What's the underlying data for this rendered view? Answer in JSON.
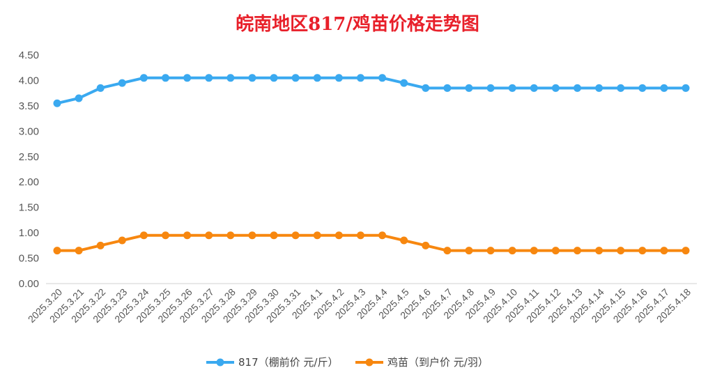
{
  "chart_data": {
    "type": "line",
    "title": "皖南地区817/鸡苗价格走势图",
    "xlabel": "",
    "ylabel": "",
    "ylim": [
      0,
      4.5
    ],
    "y_ticks": [
      "0.00",
      "0.50",
      "1.00",
      "1.50",
      "2.00",
      "2.50",
      "3.00",
      "3.50",
      "4.00",
      "4.50"
    ],
    "grid": false,
    "legend_position": "bottom",
    "categories": [
      "2025.3.20",
      "2025.3.21",
      "2025.3.22",
      "2025.3.23",
      "2025.3.24",
      "2025.3.25",
      "2025.3.26",
      "2025.3.27",
      "2025.3.28",
      "2025.3.29",
      "2025.3.30",
      "2025.3.31",
      "2025.4.1",
      "2025.4.2",
      "2025.4.3",
      "2025.4.4",
      "2025.4.5",
      "2025.4.6",
      "2025.4.7",
      "2025.4.8",
      "2025.4.9",
      "2025.4.10",
      "2025.4.11",
      "2025.4.12",
      "2025.4.13",
      "2025.4.14",
      "2025.4.15",
      "2025.4.16",
      "2025.4.17",
      "2025.4.18"
    ],
    "series": [
      {
        "name": "817（棚前价 元/斤）",
        "color": "#3aa9f0",
        "values": [
          3.55,
          3.65,
          3.85,
          3.95,
          4.05,
          4.05,
          4.05,
          4.05,
          4.05,
          4.05,
          4.05,
          4.05,
          4.05,
          4.05,
          4.05,
          4.05,
          3.95,
          3.85,
          3.85,
          3.85,
          3.85,
          3.85,
          3.85,
          3.85,
          3.85,
          3.85,
          3.85,
          3.85,
          3.85,
          3.85
        ]
      },
      {
        "name": "鸡苗（到户价 元/羽）",
        "color": "#f7870f",
        "values": [
          0.65,
          0.65,
          0.75,
          0.85,
          0.95,
          0.95,
          0.95,
          0.95,
          0.95,
          0.95,
          0.95,
          0.95,
          0.95,
          0.95,
          0.95,
          0.95,
          0.85,
          0.75,
          0.65,
          0.65,
          0.65,
          0.65,
          0.65,
          0.65,
          0.65,
          0.65,
          0.65,
          0.65,
          0.65,
          0.65
        ]
      }
    ]
  }
}
